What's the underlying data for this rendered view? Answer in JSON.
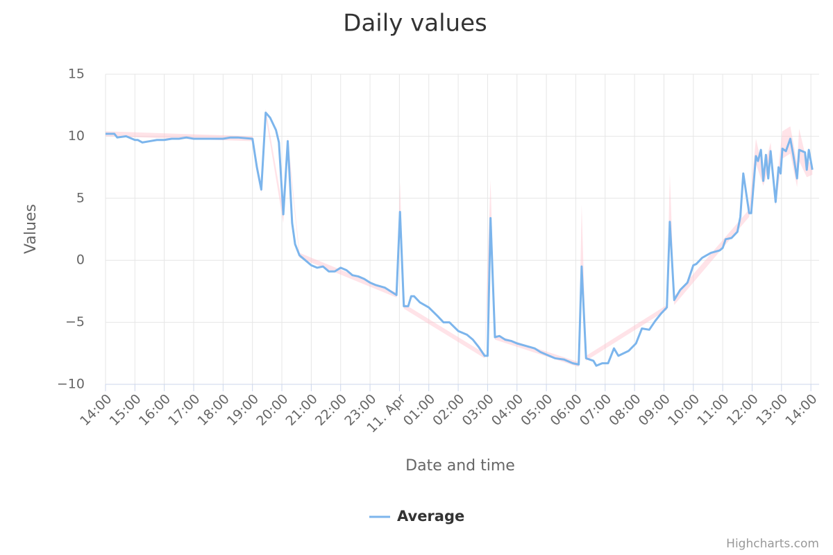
{
  "chart_data": {
    "type": "line",
    "title": "Daily values",
    "x_axis_label": "Date and time",
    "y_axis_label": "Values",
    "credits": "Highcharts.com",
    "grid": true,
    "legend": "bottom",
    "xlim": [
      0,
      24.28
    ],
    "ylim": [
      -10,
      15
    ],
    "yticks": [
      {
        "value": -10,
        "label": "−10"
      },
      {
        "value": -5,
        "label": "−5"
      },
      0,
      5,
      10,
      15
    ],
    "xticks": [
      {
        "value": 0,
        "label": "14:00"
      },
      {
        "value": 1,
        "label": "15:00"
      },
      {
        "value": 2,
        "label": "16:00"
      },
      {
        "value": 3,
        "label": "17:00"
      },
      {
        "value": 4,
        "label": "18:00"
      },
      {
        "value": 5,
        "label": "19:00"
      },
      {
        "value": 6,
        "label": "20:00"
      },
      {
        "value": 7,
        "label": "21:00"
      },
      {
        "value": 8,
        "label": "22:00"
      },
      {
        "value": 9,
        "label": "23:00"
      },
      {
        "value": 10,
        "label": "11. Apr"
      },
      {
        "value": 11,
        "label": "01:00"
      },
      {
        "value": 12,
        "label": "02:00"
      },
      {
        "value": 13,
        "label": "03:00"
      },
      {
        "value": 14,
        "label": "04:00"
      },
      {
        "value": 15,
        "label": "05:00"
      },
      {
        "value": 16,
        "label": "06:00"
      },
      {
        "value": 17,
        "label": "07:00"
      },
      {
        "value": 18,
        "label": "08:00"
      },
      {
        "value": 19,
        "label": "09:00"
      },
      {
        "value": 20,
        "label": "10:00"
      },
      {
        "value": 21,
        "label": "11:00"
      },
      {
        "value": 22,
        "label": "12:00"
      },
      {
        "value": 23,
        "label": "13:00"
      },
      {
        "value": 24,
        "label": "14:00"
      }
    ],
    "x": [
      0,
      0.3,
      0.4,
      0.7,
      1.0,
      1.1,
      1.25,
      1.5,
      1.75,
      2.0,
      2.25,
      2.5,
      2.75,
      3.0,
      3.5,
      4.0,
      4.25,
      4.5,
      5.0,
      5.15,
      5.3,
      5.45,
      5.6,
      5.8,
      5.9,
      6.05,
      6.2,
      6.35,
      6.45,
      6.6,
      6.8,
      7.0,
      7.2,
      7.4,
      7.6,
      7.8,
      8.0,
      8.2,
      8.4,
      8.6,
      8.8,
      9.0,
      9.2,
      9.5,
      9.7,
      9.9,
      10.02,
      10.15,
      10.3,
      10.4,
      10.5,
      10.7,
      11.0,
      11.3,
      11.5,
      11.7,
      12.0,
      12.3,
      12.5,
      12.7,
      12.9,
      13.0,
      13.1,
      13.25,
      13.4,
      13.6,
      13.8,
      14.0,
      14.3,
      14.6,
      14.8,
      15.0,
      15.3,
      15.6,
      15.9,
      16.1,
      16.2,
      16.35,
      16.6,
      16.7,
      16.9,
      17.1,
      17.3,
      17.45,
      17.8,
      18.05,
      18.25,
      18.5,
      18.7,
      18.9,
      19.1,
      19.2,
      19.35,
      19.55,
      19.8,
      20.0,
      20.1,
      20.3,
      20.6,
      20.9,
      21.0,
      21.1,
      21.3,
      21.5,
      21.6,
      21.7,
      21.9,
      21.97,
      22.13,
      22.2,
      22.3,
      22.38,
      22.47,
      22.55,
      22.63,
      22.8,
      22.9,
      22.97,
      23.03,
      23.15,
      23.3,
      23.4,
      23.53,
      23.6,
      23.8,
      23.86,
      23.93,
      24.05
    ],
    "series": [
      {
        "name": "Average",
        "color": "#7cb5ec",
        "values": [
          10.2,
          10.2,
          9.9,
          10.0,
          9.7,
          9.7,
          9.5,
          9.6,
          9.7,
          9.7,
          9.8,
          9.8,
          9.9,
          9.8,
          9.8,
          9.8,
          9.9,
          9.9,
          9.8,
          7.5,
          5.7,
          11.9,
          11.5,
          10.5,
          9.5,
          3.7,
          9.6,
          3.0,
          1.3,
          0.4,
          0.0,
          -0.4,
          -0.6,
          -0.5,
          -0.9,
          -0.9,
          -0.6,
          -0.8,
          -1.2,
          -1.3,
          -1.5,
          -1.8,
          -2.0,
          -2.2,
          -2.5,
          -2.8,
          3.9,
          -3.7,
          -3.7,
          -2.9,
          -2.9,
          -3.4,
          -3.8,
          -4.5,
          -5.0,
          -5.0,
          -5.7,
          -6.0,
          -6.4,
          -7.0,
          -7.7,
          -7.7,
          3.4,
          -6.2,
          -6.1,
          -6.4,
          -6.5,
          -6.7,
          -6.9,
          -7.1,
          -7.4,
          -7.6,
          -7.9,
          -8.0,
          -8.3,
          -8.4,
          -0.5,
          -7.9,
          -8.1,
          -8.5,
          -8.3,
          -8.3,
          -7.1,
          -7.7,
          -7.3,
          -6.7,
          -5.5,
          -5.6,
          -4.9,
          -4.3,
          -3.8,
          3.1,
          -3.2,
          -2.4,
          -1.8,
          -0.4,
          -0.3,
          0.2,
          0.6,
          0.8,
          1.0,
          1.7,
          1.8,
          2.3,
          3.5,
          7.0,
          3.8,
          3.8,
          8.4,
          8.0,
          8.9,
          6.4,
          8.5,
          6.6,
          8.8,
          4.7,
          7.5,
          7.0,
          9.0,
          8.8,
          9.8,
          8.5,
          6.6,
          8.9,
          8.7,
          7.3,
          8.9,
          7.3
        ]
      }
    ],
    "range": {
      "color": "#ffc0cb",
      "x": [
        0,
        5.0,
        5.3,
        5.45,
        6.05,
        6.2,
        6.6,
        9.9,
        10.02,
        10.15,
        12.9,
        13.1,
        13.25,
        16.1,
        16.2,
        16.35,
        19.1,
        19.2,
        19.35,
        21.9,
        22.13,
        22.38,
        22.63,
        22.8,
        23.03,
        23.3,
        23.53,
        23.6,
        23.86,
        24.05
      ],
      "low": [
        10.0,
        9.6,
        5.4,
        11.6,
        3.0,
        9.2,
        0.2,
        -3.0,
        3.5,
        -3.9,
        -7.9,
        3.0,
        -6.4,
        -8.6,
        -1.0,
        -8.1,
        -4.0,
        2.8,
        -3.6,
        3.5,
        7.8,
        6.0,
        7.9,
        4.4,
        8.2,
        8.6,
        5.9,
        8.0,
        6.7,
        6.9
      ],
      "high": [
        10.4,
        10.0,
        6.0,
        12.2,
        4.0,
        9.9,
        0.6,
        -2.6,
        6.3,
        -3.5,
        -7.5,
        6.5,
        -6.0,
        -8.2,
        4.5,
        -7.7,
        -3.6,
        7.0,
        -2.9,
        4.1,
        9.8,
        7.2,
        9.5,
        5.5,
        10.4,
        10.8,
        7.8,
        10.6,
        8.0,
        7.8
      ]
    }
  }
}
